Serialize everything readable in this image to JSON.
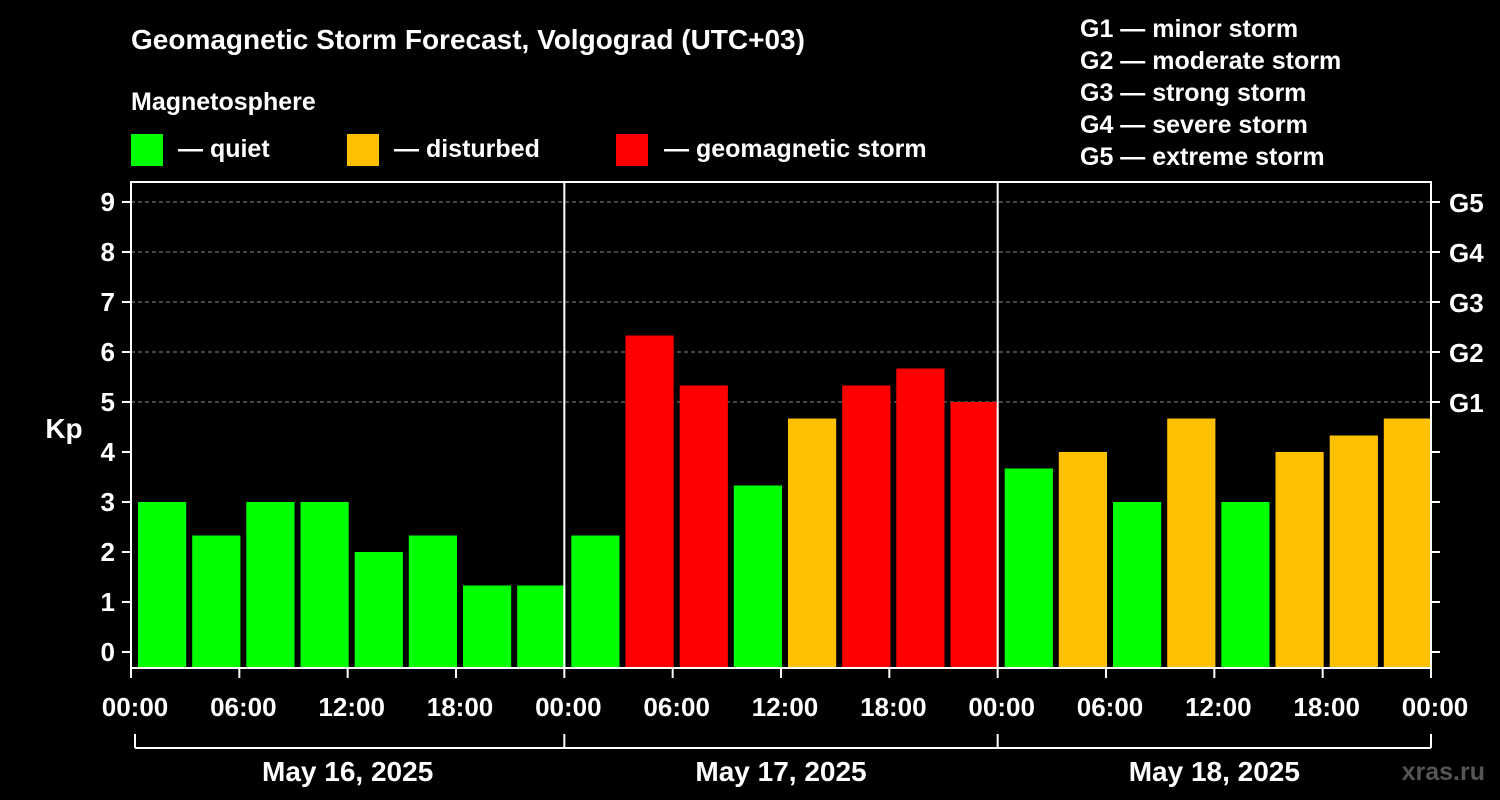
{
  "title": "Geomagnetic Storm Forecast, Volgograd (UTC+03)",
  "legend": {
    "heading": "Magnetosphere",
    "items": [
      {
        "label": "— quiet",
        "color": "#00ff00"
      },
      {
        "label": "— disturbed",
        "color": "#ffc000"
      },
      {
        "label": "— geomagnetic storm",
        "color": "#ff0000"
      }
    ]
  },
  "g_scale": [
    "G1 — minor storm",
    "G2 — moderate storm",
    "G3 — strong storm",
    "G4 — severe storm",
    "G5 — extreme storm"
  ],
  "watermark": "xras.ru",
  "chart_data": {
    "type": "bar",
    "ylabel": "Kp",
    "ylim": [
      0,
      9
    ],
    "y_ticks": [
      0,
      1,
      2,
      3,
      4,
      5,
      6,
      7,
      8,
      9
    ],
    "right_axis_labels": [
      {
        "kp": 5,
        "label": "G1"
      },
      {
        "kp": 6,
        "label": "G2"
      },
      {
        "kp": 7,
        "label": "G3"
      },
      {
        "kp": 8,
        "label": "G4"
      },
      {
        "kp": 9,
        "label": "G5"
      }
    ],
    "x_tick_labels": [
      "00:00",
      "06:00",
      "12:00",
      "18:00",
      "00:00",
      "06:00",
      "12:00",
      "18:00",
      "00:00",
      "06:00",
      "12:00",
      "18:00",
      "00:00"
    ],
    "days": [
      "May 16, 2025",
      "May 17, 2025",
      "May 18, 2025"
    ],
    "grid": "horizontal dashed at G levels",
    "colors": {
      "quiet": "#00ff00",
      "disturbed": "#ffc000",
      "storm": "#ff0000"
    },
    "values": [
      3.0,
      2.33,
      3.0,
      3.0,
      2.0,
      2.33,
      1.33,
      1.33,
      2.33,
      6.33,
      5.33,
      3.33,
      4.67,
      5.33,
      5.67,
      5.0,
      3.67,
      4.0,
      3.0,
      4.67,
      3.0,
      4.0,
      4.33,
      4.67
    ],
    "levels": [
      "quiet",
      "quiet",
      "quiet",
      "quiet",
      "quiet",
      "quiet",
      "quiet",
      "quiet",
      "quiet",
      "storm",
      "storm",
      "quiet",
      "disturbed",
      "storm",
      "storm",
      "storm",
      "quiet",
      "disturbed",
      "quiet",
      "disturbed",
      "quiet",
      "disturbed",
      "disturbed",
      "disturbed"
    ]
  }
}
